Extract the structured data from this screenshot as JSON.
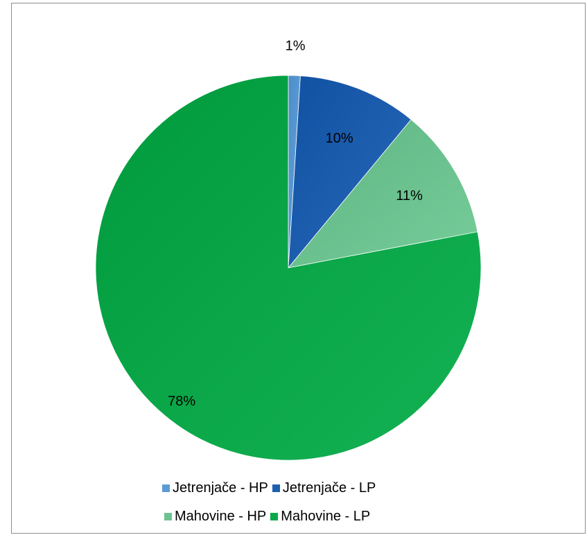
{
  "chart_data": {
    "type": "pie",
    "start_angle": "12 o'clock",
    "direction": "clockwise",
    "slices": [
      {
        "label": "Jetrenjače - HP",
        "value": 1,
        "data_label": "1%",
        "color": "#5b9bd5"
      },
      {
        "label": "Jetrenjače - LP",
        "value": 10,
        "data_label": "10%",
        "color": "#1f5fb0"
      },
      {
        "label": "Mahovine - HP",
        "value": 11,
        "data_label": "11%",
        "color": "#6cc390"
      },
      {
        "label": "Mahovine - LP",
        "value": 78,
        "data_label": "78%",
        "color": "#0aa84a"
      }
    ],
    "legend_position": "bottom"
  }
}
